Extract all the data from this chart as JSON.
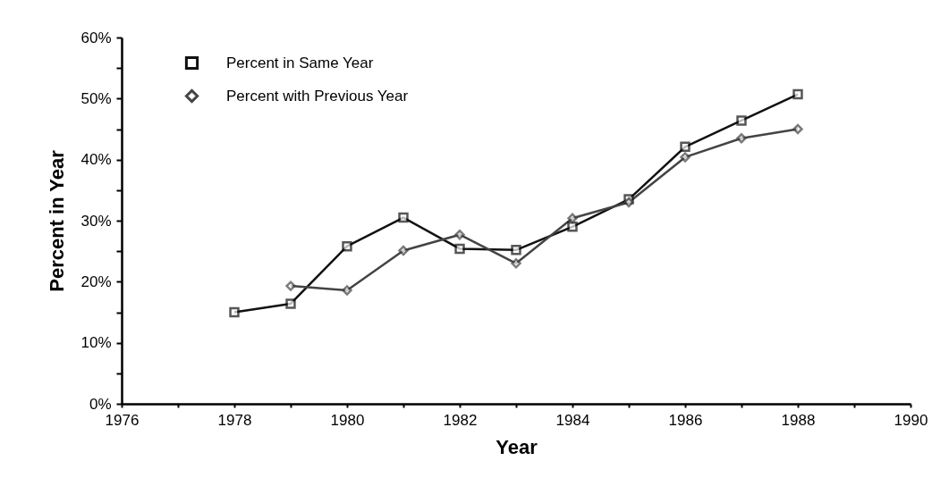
{
  "chart_data": {
    "type": "line",
    "xlabel": "Year",
    "ylabel": "Percent in Year",
    "xlim": [
      1976,
      1990
    ],
    "xticks": [
      1976,
      {
        "value": 1977,
        "label": null
      },
      1978,
      {
        "value": 1979,
        "label": null
      },
      1980,
      {
        "value": 1981,
        "label": null
      },
      1982,
      {
        "value": 1983,
        "label": null
      },
      1984,
      {
        "value": 1985,
        "label": null
      },
      1986,
      {
        "value": 1987,
        "label": null
      },
      1988,
      {
        "value": 1989,
        "label": null
      },
      1990
    ],
    "ylim": [
      0,
      60
    ],
    "yticks": [
      {
        "value": 0,
        "label": "0%"
      },
      {
        "value": 5,
        "label": null
      },
      {
        "value": 10,
        "label": "10%"
      },
      {
        "value": 15,
        "label": null
      },
      {
        "value": 20,
        "label": "20%"
      },
      {
        "value": 25,
        "label": null
      },
      {
        "value": 30,
        "label": "30%"
      },
      {
        "value": 35,
        "label": null
      },
      {
        "value": 40,
        "label": "40%"
      },
      {
        "value": 45,
        "label": null
      },
      {
        "value": 50,
        "label": "50%"
      },
      {
        "value": 55,
        "label": null
      },
      {
        "value": 60,
        "label": "60%"
      }
    ],
    "grid": false,
    "legend": "top left",
    "line_style": "solid",
    "series": [
      {
        "name": "Percent in Same Year",
        "color": "#111111",
        "marker": "square",
        "x": [
          1978,
          1979,
          1980,
          1981,
          1982,
          1983,
          1984,
          1985,
          1986,
          1987,
          1988
        ],
        "values": [
          15.0,
          16.4,
          25.8,
          30.5,
          25.4,
          25.2,
          29.0,
          33.5,
          42.1,
          46.4,
          50.7
        ]
      },
      {
        "name": "Percent with Previous Year",
        "color": "#444444",
        "marker": "diamond",
        "x": [
          1979,
          1980,
          1981,
          1982,
          1983,
          1984,
          1985,
          1986,
          1987,
          1988
        ],
        "values": [
          19.3,
          18.6,
          25.1,
          27.7,
          23.0,
          30.4,
          33.0,
          40.4,
          43.5,
          45.0
        ]
      }
    ]
  }
}
